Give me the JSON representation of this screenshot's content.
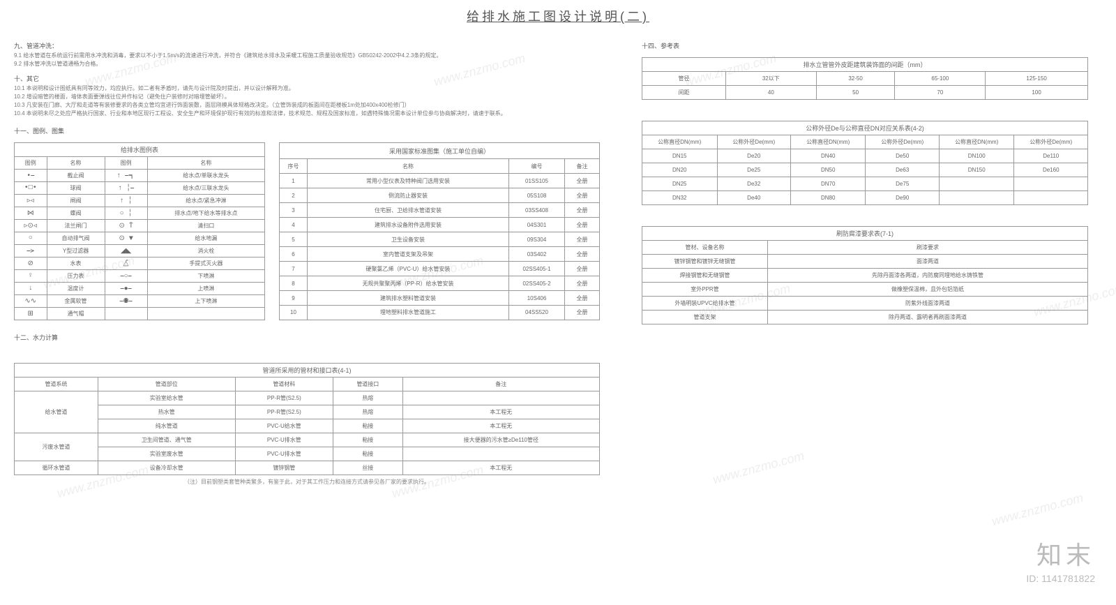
{
  "title": "给排水施工图设计说明(二)",
  "section9": {
    "header": "九、管道冲洗：",
    "lines": [
      "9.1  给水管道在系统运行前需用水冲洗和消毒，要求以不小于1.5m/s的流速进行冲洗，并符合《建筑给水排水及采暖工程施工质量验收规范》GB50242-2002中4.2.3条的规定。",
      "9.2  排水管冲洗以管道通畅为合格。"
    ]
  },
  "section10": {
    "header": "十、其它",
    "lines": [
      "10.1  本说明和设计图纸具有同等效力，均应执行。如二者有矛盾时，请先与设计院及时提出，并以设计解释为准。",
      "10.2  增设暗管的楼面，墙体表面要弹线往位并作标记（避免住户装修时对暗埋管破坏）。",
      "10.3  凡安装在门廊、大厅和走道等有装修要求的各类立管均宜进行饰面装敷，面层刚模具体规格改决定。（立管饰装成的板面间在距楼板1m处加400x400检修门）",
      "10.4  本说明未尽之处应严格执行国家、行业和本地区现行工程设、安全生产和环境保护现行有效的标准和法律，技术规范、规程及国家标准，如遇特殊情况需本设计单位参与协商解决时，请速于联系。"
    ]
  },
  "section11": {
    "header": "十一、图例、图集"
  },
  "section12": {
    "header": "十二、水力计算"
  },
  "section14": {
    "header": "十四、参考表"
  },
  "legend": {
    "title": "给排水图例表",
    "headers": [
      "图例",
      "名称",
      "图例",
      "名称"
    ],
    "rows": [
      [
        "•⎯",
        "截止阀",
        "↑  ⎯┑",
        "给水点/单联水龙头"
      ],
      [
        "•□•",
        "球阀",
        "↑  ╎⎯",
        "给水点/三联水龙头"
      ],
      [
        "▹◃",
        "闸阀",
        "↑  ╎",
        "给水点/紧急冲淋"
      ],
      [
        "⋈",
        "蝶阀",
        "○  ╎",
        "排水点/地下给水等排水点"
      ],
      [
        "▹⊙◃",
        "法兰闸门",
        "⊙  T̄",
        "清扫口"
      ],
      [
        "○",
        "自动排气阀",
        "⊙  ▼",
        "给水地漏"
      ],
      [
        "⎯⪫",
        "Y型过滤器",
        "◢◣",
        "消火栓"
      ],
      [
        "⊘",
        "水表",
        "△̂",
        "手提式灭火器"
      ],
      [
        "♀",
        "压力表",
        "⎯○⎯",
        "下喷淋"
      ],
      [
        "↓",
        "温度计",
        "⎯●⎯",
        "上喷淋"
      ],
      [
        "∿∿",
        "金属软管",
        "⎯◉⎯",
        "上下喷淋"
      ],
      [
        "⊞",
        "通气帽",
        "",
        ""
      ]
    ]
  },
  "stdAtlas": {
    "title": "采用国家标准图集（施工单位自编）",
    "headers": [
      "序号",
      "名称",
      "编号",
      "备注"
    ],
    "rows": [
      [
        "1",
        "常用小型仪表及特种阀门选用安装",
        "01SS105",
        "全册"
      ],
      [
        "2",
        "倒流防止器安装",
        "05S108",
        "全册"
      ],
      [
        "3",
        "住宅厨、卫给排水管道安装",
        "03SS408",
        "全册"
      ],
      [
        "4",
        "建筑排水设备附件选用安装",
        "04S301",
        "全册"
      ],
      [
        "5",
        "卫生设备安装",
        "09S304",
        "全册"
      ],
      [
        "6",
        "室内管道支架及吊架",
        "03S402",
        "全册"
      ],
      [
        "7",
        "硬聚氯乙烯（PVC-U）给水管安装",
        "02SS405-1",
        "全册"
      ],
      [
        "8",
        "无规共聚聚丙烯（PP-R）给水管安装",
        "02SS405-2",
        "全册"
      ],
      [
        "9",
        "建筑排水塑料管道安装",
        "10S406",
        "全册"
      ],
      [
        "10",
        "埋地塑料排水管道施工",
        "04SS520",
        "全册"
      ]
    ]
  },
  "pipeMaterial": {
    "title": "管道所采用的管材和接口表(4-1)",
    "headers": [
      "管道系统",
      "管道部位",
      "管道材料",
      "管道接口",
      "备注"
    ],
    "rows": [
      {
        "sys": "给水管道",
        "rowspan": 3,
        "cells": [
          [
            "实验室给水管",
            "PP-R管(S2.5)",
            "热熔",
            ""
          ],
          [
            "热水管",
            "PP-R管(S2.5)",
            "热熔",
            "本工程无"
          ],
          [
            "纯水管道",
            "PVC-U给水管",
            "粘接",
            "本工程无"
          ]
        ]
      },
      {
        "sys": "污废水管道",
        "rowspan": 2,
        "cells": [
          [
            "卫生间管道、通气管",
            "PVC-U排水管",
            "粘接",
            "接大便器的污水管≥De110管径"
          ],
          [
            "实验室废水管",
            "PVC-U排水管",
            "粘接",
            ""
          ]
        ]
      },
      {
        "sys": "循环水管道",
        "rowspan": 1,
        "cells": [
          [
            "设备冷却水管",
            "镀锌钢管",
            "丝接",
            "本工程无"
          ]
        ]
      }
    ],
    "footnote": "（注）目前钢塑类套管种类繁多，有鉴于此，对于其工作压力和连接方式请参见各厂家的要求执行。"
  },
  "riserGap": {
    "title": "排水立管管外皮距建筑装饰面的间距（mm）",
    "rows": [
      [
        "管径",
        "32以下",
        "32-50",
        "65-100",
        "125-150"
      ],
      [
        "间距",
        "40",
        "50",
        "70",
        "100"
      ]
    ]
  },
  "dnDe": {
    "title": "公称外径De与公称直径DN对应关系表(4-2)",
    "headers": [
      "公称直径DN(mm)",
      "公称外径De(mm)",
      "公称直径DN(mm)",
      "公称外径De(mm)",
      "公称直径DN(mm)",
      "公称外径De(mm)"
    ],
    "rows": [
      [
        "DN15",
        "De20",
        "DN40",
        "De50",
        "DN100",
        "De110"
      ],
      [
        "DN20",
        "De25",
        "DN50",
        "De63",
        "DN150",
        "De160"
      ],
      [
        "DN25",
        "De32",
        "DN70",
        "De75",
        "",
        ""
      ],
      [
        "DN32",
        "De40",
        "DN80",
        "De90",
        "",
        ""
      ]
    ]
  },
  "corrosion": {
    "title": "刷防腐漆要求表(7-1)",
    "headers": [
      "管材、设备名称",
      "刷漆要求"
    ],
    "rows": [
      [
        "镀锌钢管和镀锌无缝钢管",
        "面漆两道"
      ],
      [
        "焊接钢管和无缝钢管",
        "先除丹面漆各两道，内防腐同埋地给水铸铁管"
      ],
      [
        "室外PPR管",
        "做橡塑保温棉，且外包铝箔纸"
      ],
      [
        "外墙明装UPVC给排水管",
        "防紫外线面漆两道"
      ],
      [
        "管道支架",
        "除丹两道、露明者再刷面漆两道"
      ]
    ]
  },
  "brand": {
    "name": "知末",
    "id": "ID: 1141781822"
  },
  "watermarkText": "www.znzmo.com"
}
